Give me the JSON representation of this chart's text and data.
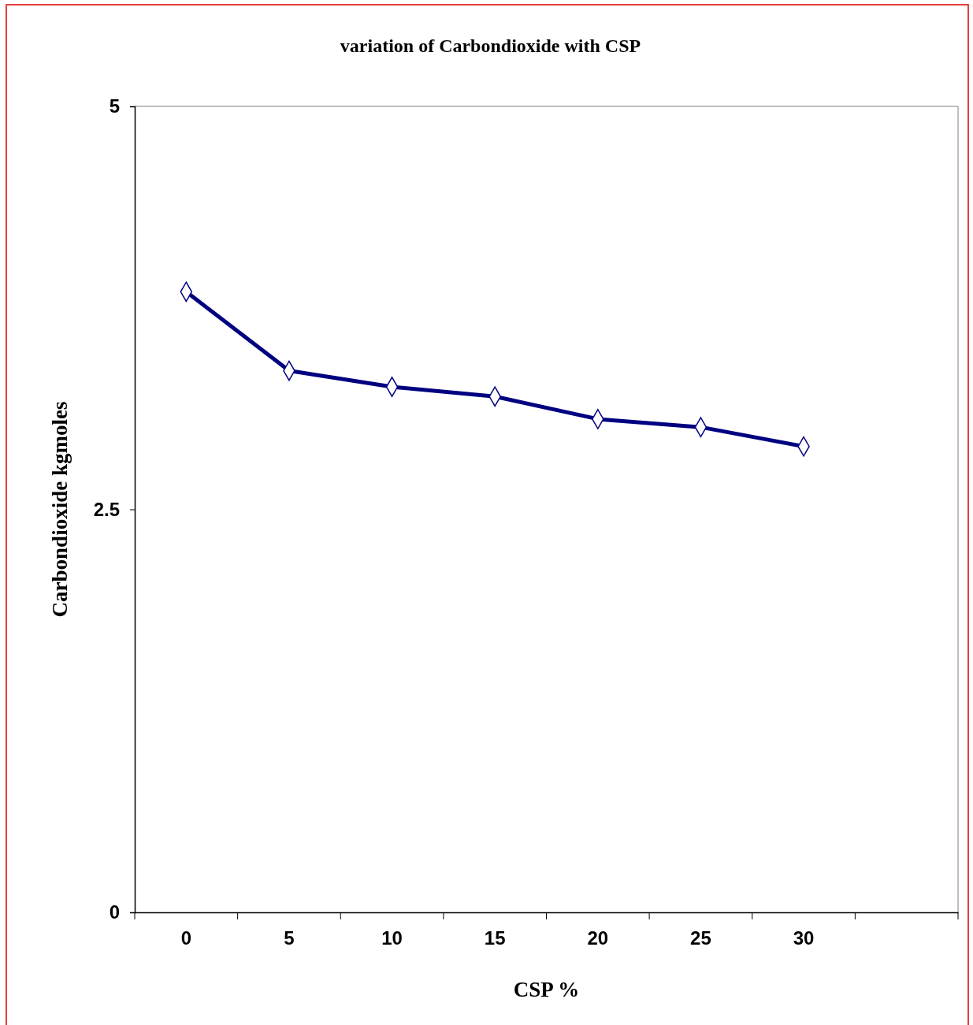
{
  "chart_data": {
    "type": "line",
    "title": "variation of Carbondioxide with CSP",
    "xlabel": "CSP %",
    "ylabel": "Carbondioxide kgmoles",
    "categories": [
      "0",
      "5",
      "10",
      "15",
      "20",
      "25",
      "30",
      null
    ],
    "series": [
      {
        "color": "#000080",
        "values": [
          3.85,
          3.36,
          3.26,
          3.2,
          3.06,
          3.01,
          2.89,
          null
        ]
      }
    ],
    "ylim": [
      0,
      5
    ],
    "yticks": [
      0,
      2.5,
      5
    ],
    "grid": false,
    "legend": false,
    "marker": "diamond",
    "line_style": "solid"
  }
}
